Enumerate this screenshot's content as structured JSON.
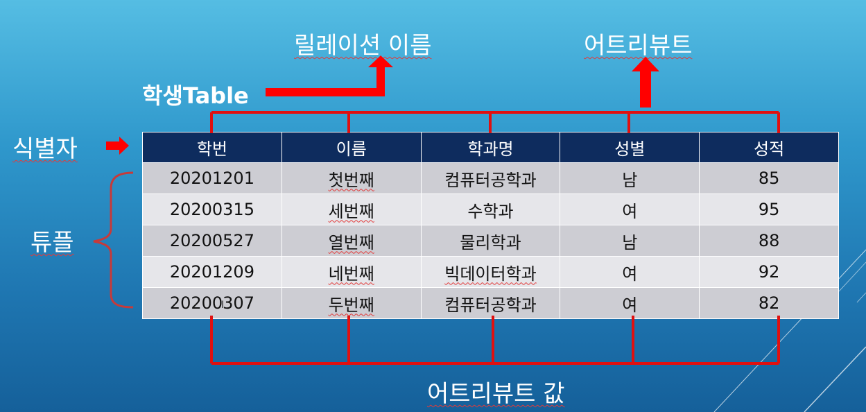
{
  "labels": {
    "relation_name": "릴레이션 이름",
    "attribute": "어트리뷰트",
    "table_name": "학생Table",
    "identifier": "식별자",
    "tuple": "튜플",
    "attribute_value": "어트리뷰트 값"
  },
  "table": {
    "headers": [
      "학번",
      "이름",
      "학과명",
      "성별",
      "성적"
    ],
    "rows": [
      [
        "20201201",
        "첫번째",
        "컴퓨터공학과",
        "남",
        "85"
      ],
      [
        "20200315",
        "세번째",
        "수학과",
        "여",
        "95"
      ],
      [
        "20200527",
        "열번째",
        "물리학과",
        "남",
        "88"
      ],
      [
        "20201209",
        "네번째",
        "빅데이터학과",
        "여",
        "92"
      ],
      [
        "20200307",
        "두번째",
        "컴퓨터공학과",
        "여",
        "82"
      ]
    ]
  },
  "colors": {
    "arrow_red": "#ff0000",
    "bracket_red": "#c0392b",
    "header_navy": "#0e2c5e"
  }
}
